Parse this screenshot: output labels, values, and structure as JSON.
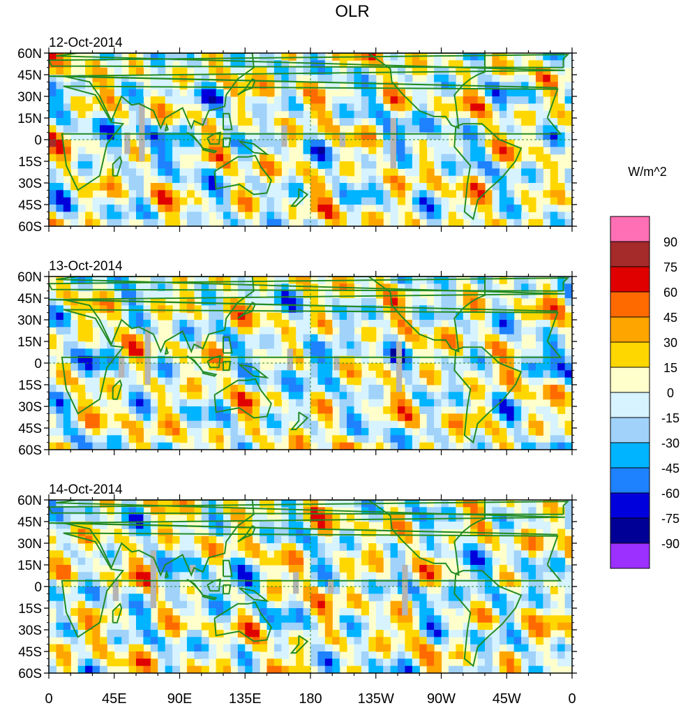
{
  "chart_data": {
    "type": "heatmap",
    "title": "OLR",
    "units": "W/m^2",
    "panels": [
      {
        "date": "12-Oct-2014"
      },
      {
        "date": "13-Oct-2014"
      },
      {
        "date": "14-Oct-2014"
      }
    ],
    "lat_ticks": [
      "60N",
      "45N",
      "30N",
      "15N",
      "0",
      "15S",
      "30S",
      "45S",
      "60S"
    ],
    "lat_values": [
      60,
      45,
      30,
      15,
      0,
      -15,
      -30,
      -45,
      -60
    ],
    "lon_ticks": [
      "0",
      "45E",
      "90E",
      "135E",
      "180",
      "135W",
      "90W",
      "45W",
      "0"
    ],
    "lon_values": [
      0,
      45,
      90,
      135,
      180,
      225,
      270,
      315,
      360
    ],
    "lat_range": [
      -60,
      60
    ],
    "lon_range": [
      0,
      360
    ],
    "colorbar": {
      "levels": [
        "90",
        "75",
        "60",
        "45",
        "30",
        "15",
        "0",
        "-15",
        "-30",
        "-45",
        "-60",
        "-75",
        "-90"
      ],
      "colors": [
        "#ff6fb5",
        "#a52a2a",
        "#e00000",
        "#ff6a00",
        "#ffa500",
        "#ffd700",
        "#ffffcc",
        "#d6f3ff",
        "#a0d2fa",
        "#00b4ff",
        "#1e82ff",
        "#0000dc",
        "#000096",
        "#9b30ff"
      ]
    },
    "missing_color": "#b4b4b4",
    "coast_color": "#228b22"
  }
}
